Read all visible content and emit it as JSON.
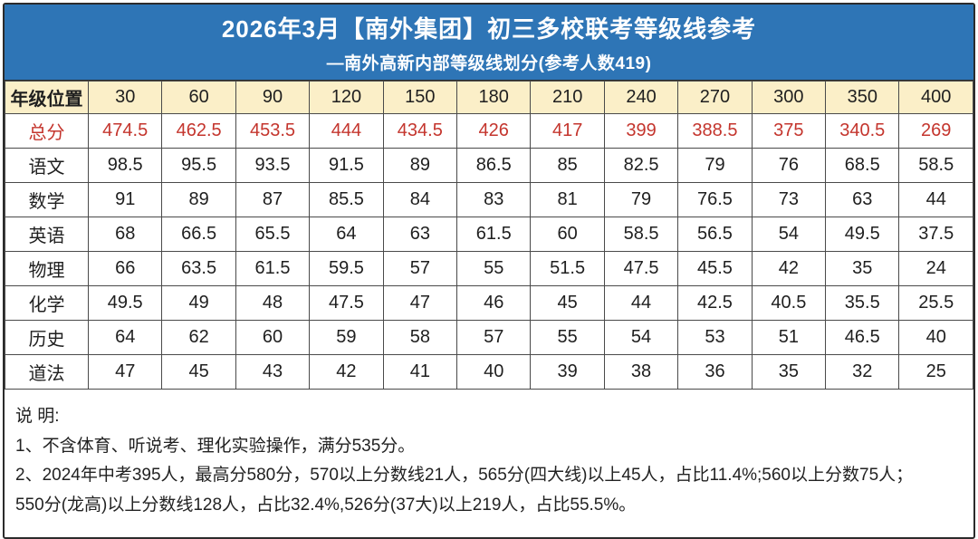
{
  "header": {
    "title": "2026年3月【南外集团】初三多校联考等级线参考",
    "subtitle": "—南外高新内部等级线划分(参考人数419)"
  },
  "table": {
    "corner_label": "年级位置",
    "columns": [
      "30",
      "60",
      "90",
      "120",
      "150",
      "180",
      "210",
      "240",
      "270",
      "300",
      "350",
      "400"
    ],
    "rows": [
      {
        "label": "总分",
        "highlight": true,
        "values": [
          "474.5",
          "462.5",
          "453.5",
          "444",
          "434.5",
          "426",
          "417",
          "399",
          "388.5",
          "375",
          "340.5",
          "269"
        ]
      },
      {
        "label": "语文",
        "highlight": false,
        "values": [
          "98.5",
          "95.5",
          "93.5",
          "91.5",
          "89",
          "86.5",
          "85",
          "82.5",
          "79",
          "76",
          "68.5",
          "58.5"
        ]
      },
      {
        "label": "数学",
        "highlight": false,
        "values": [
          "91",
          "89",
          "87",
          "85.5",
          "84",
          "83",
          "81",
          "79",
          "76.5",
          "73",
          "63",
          "44"
        ]
      },
      {
        "label": "英语",
        "highlight": false,
        "values": [
          "68",
          "66.5",
          "65.5",
          "64",
          "63",
          "61.5",
          "60",
          "58.5",
          "56.5",
          "54",
          "49.5",
          "37.5"
        ]
      },
      {
        "label": "物理",
        "highlight": false,
        "values": [
          "66",
          "63.5",
          "61.5",
          "59.5",
          "57",
          "55",
          "51.5",
          "47.5",
          "45.5",
          "42",
          "35",
          "24"
        ]
      },
      {
        "label": "化学",
        "highlight": false,
        "values": [
          "49.5",
          "49",
          "48",
          "47.5",
          "47",
          "46",
          "45",
          "44",
          "42.5",
          "40.5",
          "35.5",
          "25.5"
        ]
      },
      {
        "label": "历史",
        "highlight": false,
        "values": [
          "64",
          "62",
          "60",
          "59",
          "58",
          "57",
          "55",
          "54",
          "53",
          "51",
          "46.5",
          "40"
        ]
      },
      {
        "label": "道法",
        "highlight": false,
        "values": [
          "47",
          "45",
          "43",
          "42",
          "41",
          "40",
          "39",
          "38",
          "36",
          "35",
          "32",
          "25"
        ]
      }
    ]
  },
  "notes": {
    "heading": "说 明:",
    "lines": [
      "1、不含体育、听说考、理化实验操作，满分535分。",
      "2、2024年中考395人，最高分580分，570以上分数线21人，565分(四大线)以上45人，占比11.4%;560以上分数75人；",
      "550分(龙高)以上分数线128人，占比32.4%,526分(37大)以上219人，占比55.5%。"
    ]
  },
  "colors": {
    "header_blue": "#2E75B6",
    "band_cream": "#FBEFC8",
    "highlight_red": "#C4352D"
  }
}
